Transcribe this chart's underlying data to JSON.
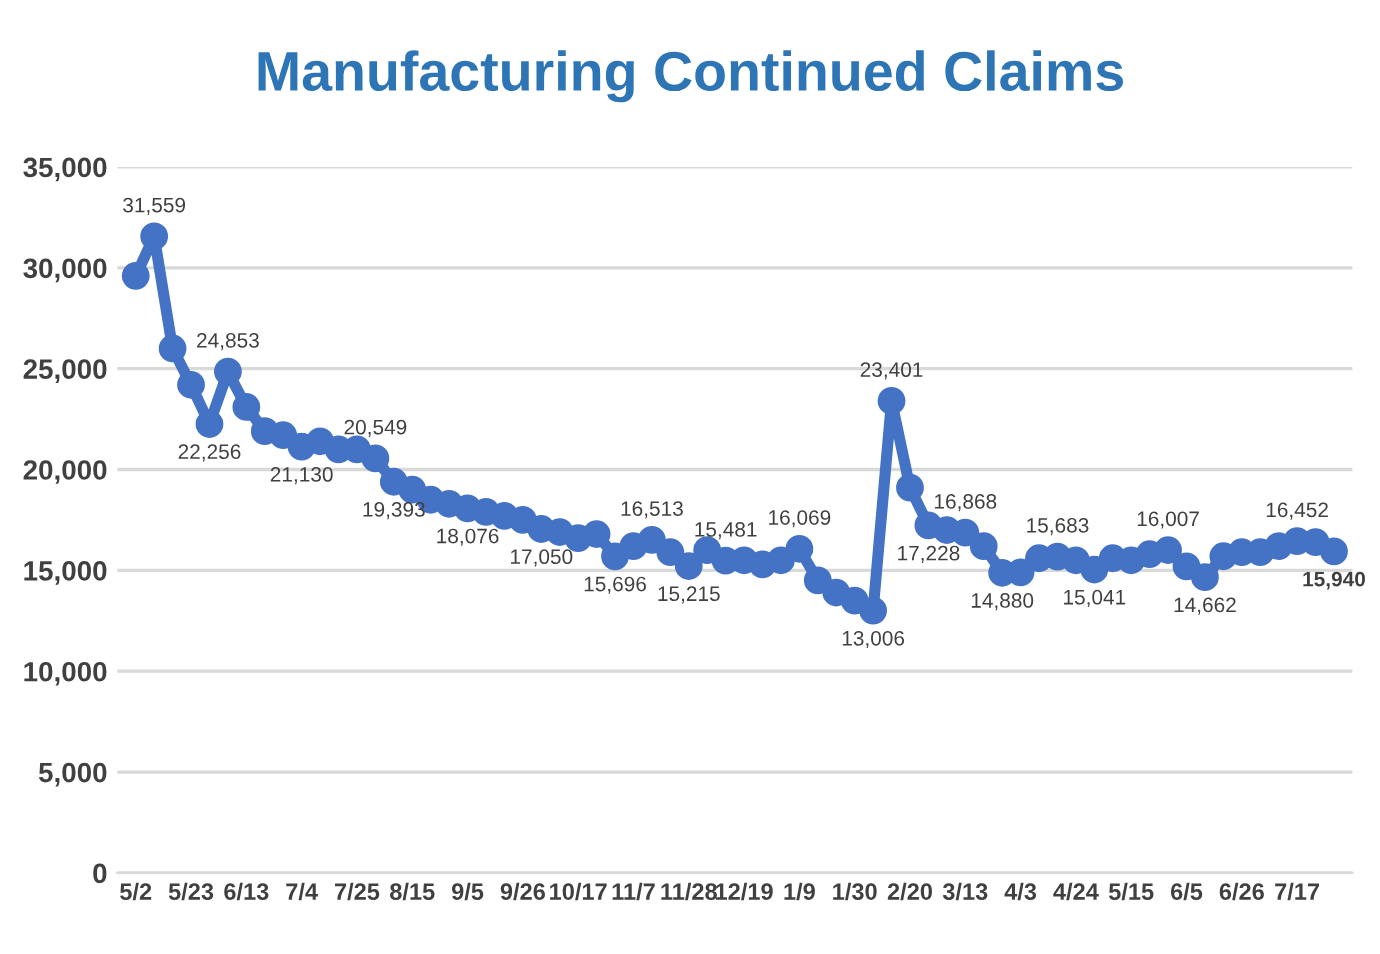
{
  "chart_data": {
    "type": "line",
    "title": "Manufacturing Continued Claims",
    "categories": [
      "5/2",
      null,
      null,
      "5/23",
      null,
      null,
      "6/13",
      null,
      null,
      "7/4",
      null,
      null,
      "7/25",
      null,
      null,
      "8/15",
      null,
      null,
      "9/5",
      null,
      null,
      "9/26",
      null,
      null,
      "10/17",
      null,
      null,
      "11/7",
      null,
      null,
      "11/28",
      null,
      null,
      "12/19",
      null,
      null,
      "1/9",
      null,
      null,
      "1/30",
      null,
      null,
      "2/20",
      null,
      null,
      "3/13",
      null,
      null,
      "4/3",
      null,
      null,
      "4/24",
      null,
      null,
      "5/15",
      null,
      null,
      "6/5",
      null,
      null,
      "6/26",
      null,
      null,
      "7/17",
      null,
      null
    ],
    "series": [
      {
        "color": "#4472c4",
        "values": [
          29600,
          31559,
          26000,
          24200,
          22256,
          24853,
          23100,
          21900,
          21700,
          21130,
          21400,
          21000,
          21000,
          20549,
          19393,
          19000,
          18500,
          18300,
          18076,
          17900,
          17700,
          17500,
          17050,
          16900,
          16600,
          16800,
          15696,
          16200,
          16513,
          15900,
          15215,
          16000,
          15481,
          15500,
          15300,
          15500,
          16069,
          14500,
          13900,
          13500,
          13006,
          23401,
          19100,
          17228,
          17000,
          16868,
          16200,
          14880,
          14900,
          15600,
          15683,
          15500,
          15041,
          15600,
          15500,
          15800,
          16007,
          15200,
          14662,
          15700,
          15900,
          15900,
          16200,
          16452,
          16400,
          15940
        ],
        "value_labels": [
          null,
          "31,559",
          null,
          null,
          "22,256",
          "24,853",
          null,
          null,
          null,
          "21,130",
          null,
          null,
          null,
          "20,549",
          "19,393",
          null,
          null,
          null,
          "18,076",
          null,
          null,
          null,
          "17,050",
          null,
          null,
          null,
          "15,696",
          null,
          "16,513",
          null,
          "15,215",
          null,
          "15,481",
          null,
          null,
          null,
          "16,069",
          null,
          null,
          null,
          "13,006",
          "23,401",
          null,
          "17,228",
          null,
          "16,868",
          null,
          "14,880",
          null,
          null,
          "15,683",
          null,
          "15,041",
          null,
          null,
          null,
          "16,007",
          null,
          "14,662",
          null,
          null,
          null,
          null,
          "16,452",
          null,
          "15,940"
        ]
      }
    ],
    "ylim": [
      0,
      35000
    ],
    "yticks": [
      {
        "value": 0,
        "label": "0"
      },
      {
        "value": 5000,
        "label": "5,000"
      },
      {
        "value": 10000,
        "label": "10,000"
      },
      {
        "value": 15000,
        "label": "15,000"
      },
      {
        "value": 20000,
        "label": "20,000"
      },
      {
        "value": 25000,
        "label": "25,000"
      },
      {
        "value": 30000,
        "label": "30,000"
      },
      {
        "value": 35000,
        "label": "35,000"
      }
    ],
    "grid": "y",
    "legend": false,
    "marker": "circle",
    "line_style": "solid"
  }
}
